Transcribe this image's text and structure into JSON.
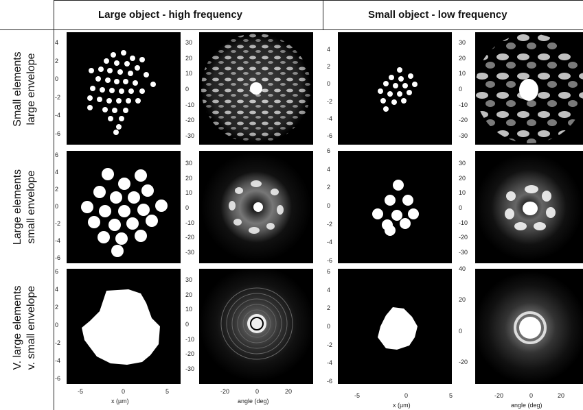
{
  "column_headers": [
    {
      "label": "Large object - high frequency"
    },
    {
      "label": "Small object  - low frequency"
    }
  ],
  "row_labels": [
    {
      "line1": "Small elements",
      "line2": "large envelope"
    },
    {
      "line1": "Large elements",
      "line2": "small envelope"
    },
    {
      "line1": "V. large elements",
      "line2": "v. small envelope"
    }
  ],
  "axes": {
    "object_x": {
      "label": "x (µm)",
      "ticks": [
        "-5",
        "0",
        "5"
      ]
    },
    "far_x": {
      "label": "angle (deg)",
      "ticks": [
        "-20",
        "0",
        "20"
      ]
    },
    "object_y_ticks": {
      "r1c1": [
        "4",
        "2",
        "0",
        "-2",
        "-4",
        "-6"
      ],
      "r2c1": [
        "6",
        "4",
        "2",
        "0",
        "-2",
        "-4",
        "-6"
      ],
      "r3c1": [
        "6",
        "4",
        "2",
        "0",
        "-2",
        "-4",
        "-6"
      ],
      "r1c3": [
        "4",
        "2",
        "0",
        "-2",
        "-4",
        "-6"
      ],
      "r2c3": [
        "6",
        "4",
        "2",
        "0",
        "-2",
        "-4",
        "-6"
      ],
      "r3c3": [
        "6",
        "4",
        "2",
        "0",
        "-2",
        "-4",
        "-6"
      ]
    },
    "far_y_ticks": {
      "r1c2": [
        "30",
        "20",
        "10",
        "0",
        "-10",
        "-20",
        "-30"
      ],
      "r2c2": [
        "30",
        "20",
        "10",
        "0",
        "-10",
        "-20",
        "-30"
      ],
      "r3c2": [
        "30",
        "20",
        "10",
        "0",
        "-10",
        "-20",
        "-30"
      ],
      "r1c4": [
        "30",
        "20",
        "10",
        "0",
        "-10",
        "-20",
        "-30"
      ],
      "r2c4": [
        "30",
        "20",
        "10",
        "0",
        "-10",
        "-20",
        "-30"
      ],
      "r3c4": [
        "40",
        "20",
        "0",
        "-20"
      ]
    }
  }
}
